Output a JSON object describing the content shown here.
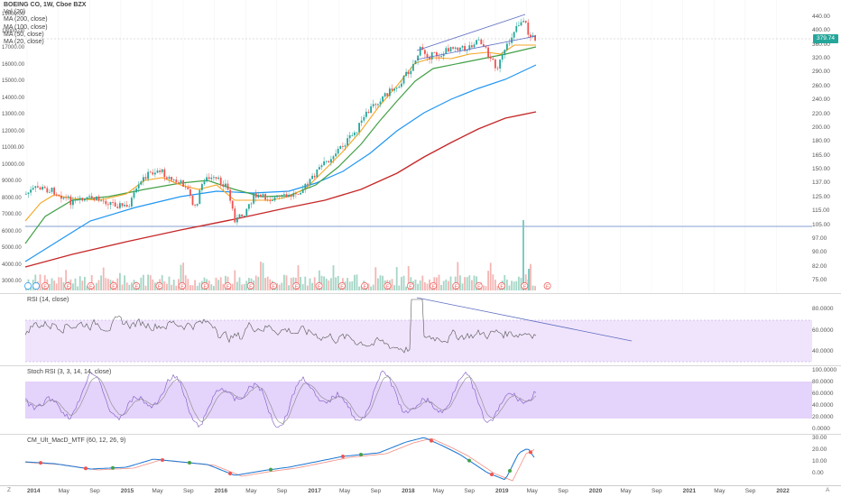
{
  "legend": {
    "title": "BOEING CO, 1W, Cboe BZX",
    "items": [
      "Vol (20)",
      "MA (200, close)",
      "MA (100, close)",
      "MA (50, close)",
      "MA (20, close)"
    ]
  },
  "last_price": "379.74",
  "right_axis_ticks": [
    "440.00",
    "400.00",
    "360.00",
    "320.00",
    "290.00",
    "260.00",
    "240.00",
    "220.00",
    "200.00",
    "180.00",
    "165.00",
    "150.00",
    "137.00",
    "125.00",
    "115.00",
    "105.00",
    "97.00",
    "90.00",
    "82.00",
    "75.00"
  ],
  "left_axis_ticks": [
    "19000.00",
    "18000.00",
    "17000.00",
    "16000.00",
    "15000.00",
    "14000.00",
    "13000.00",
    "12000.00",
    "11000.00",
    "10000.00",
    "9000.00",
    "8000.00",
    "7000.00",
    "6000.00",
    "5000.00",
    "4000.00",
    "3000.00"
  ],
  "rsi": {
    "label": "RSI (14, close)",
    "ticks": [
      "80.0000",
      "60.0000",
      "40.0000"
    ]
  },
  "stoch": {
    "label": "Stoch RSI (3, 3, 14, 14, close)",
    "ticks": [
      "100.0000",
      "80.0000",
      "60.0000",
      "40.0000",
      "20.0000",
      "0.0000"
    ]
  },
  "macd": {
    "label": "CM_Ult_MacD_MTF (60, 12, 26, 9)",
    "ticks": [
      "30.00",
      "20.00",
      "10.00",
      "0.00"
    ]
  },
  "time_axis": [
    "2014",
    "May",
    "Sep",
    "2015",
    "May",
    "Sep",
    "2016",
    "May",
    "Sep",
    "2017",
    "May",
    "Sep",
    "2018",
    "May",
    "Sep",
    "2019",
    "May",
    "Sep",
    "2020",
    "May",
    "Sep",
    "2021",
    "May",
    "Sep",
    "2022"
  ],
  "corner_left": "Z",
  "corner_right": "A",
  "colors": {
    "up": "#26a69a",
    "down": "#ef5350",
    "ma20": "#f5a623",
    "ma50": "#43a047",
    "ma100": "#2196f3",
    "ma200": "#c62828",
    "band": "#e9d8fb",
    "trend": "#5c6bc0"
  }
}
